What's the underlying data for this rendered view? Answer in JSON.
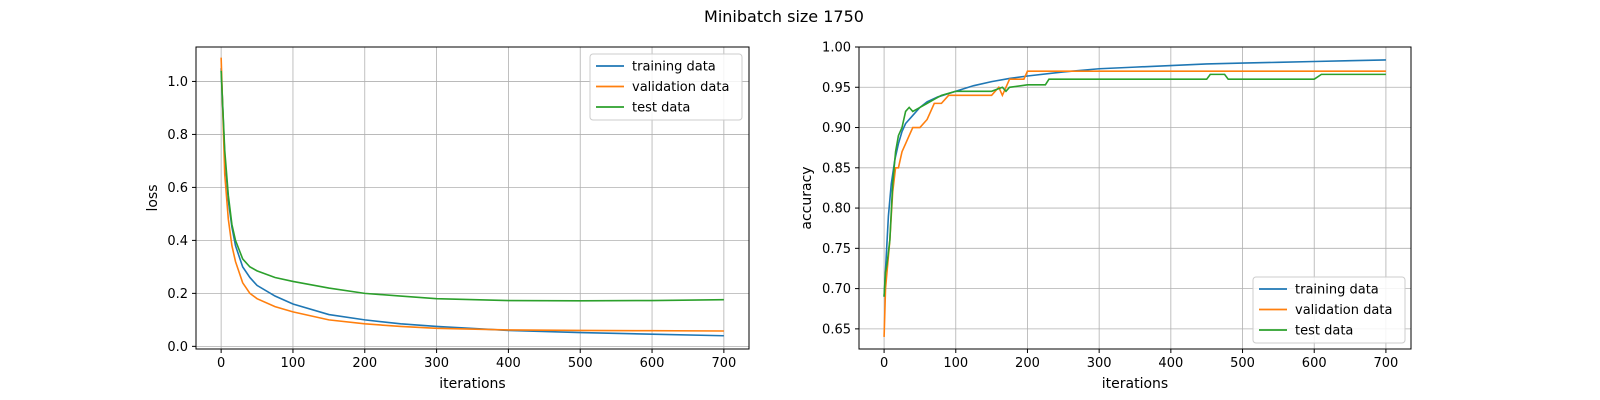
{
  "figure": {
    "title": "Minibatch size 1750"
  },
  "chart_data": [
    {
      "type": "line",
      "xlabel": "iterations",
      "ylabel": "loss",
      "xlim": [
        -35,
        735
      ],
      "ylim": [
        -0.01,
        1.13
      ],
      "xticks": [
        0,
        100,
        200,
        300,
        400,
        500,
        600,
        700
      ],
      "yticks": [
        0.0,
        0.2,
        0.4,
        0.6,
        0.8,
        1.0
      ],
      "ytick_labels": [
        "0.0",
        "0.2",
        "0.4",
        "0.6",
        "0.8",
        "1.0"
      ],
      "grid": true,
      "legend_position": "top-right",
      "series": [
        {
          "name": "training data",
          "color": "#1f77b4",
          "x": [
            0,
            5,
            10,
            15,
            20,
            30,
            40,
            50,
            75,
            100,
            150,
            200,
            250,
            300,
            400,
            500,
            600,
            700
          ],
          "y": [
            1.05,
            0.72,
            0.55,
            0.45,
            0.38,
            0.3,
            0.26,
            0.23,
            0.19,
            0.16,
            0.12,
            0.1,
            0.085,
            0.075,
            0.06,
            0.052,
            0.046,
            0.04
          ]
        },
        {
          "name": "validation data",
          "color": "#ff7f0e",
          "x": [
            0,
            5,
            10,
            15,
            20,
            30,
            40,
            50,
            75,
            100,
            150,
            200,
            250,
            300,
            400,
            500,
            600,
            700
          ],
          "y": [
            1.09,
            0.65,
            0.48,
            0.38,
            0.32,
            0.24,
            0.2,
            0.18,
            0.15,
            0.13,
            0.1,
            0.085,
            0.075,
            0.068,
            0.062,
            0.06,
            0.059,
            0.058
          ]
        },
        {
          "name": "test data",
          "color": "#2ca02c",
          "x": [
            0,
            5,
            10,
            15,
            20,
            30,
            40,
            50,
            75,
            100,
            150,
            200,
            250,
            300,
            400,
            500,
            600,
            700
          ],
          "y": [
            1.04,
            0.74,
            0.57,
            0.46,
            0.4,
            0.33,
            0.3,
            0.285,
            0.26,
            0.245,
            0.22,
            0.2,
            0.19,
            0.18,
            0.173,
            0.172,
            0.173,
            0.176
          ]
        }
      ]
    },
    {
      "type": "line",
      "xlabel": "iterations",
      "ylabel": "accuracy",
      "xlim": [
        -35,
        735
      ],
      "ylim": [
        0.625,
        1.0
      ],
      "xticks": [
        0,
        100,
        200,
        300,
        400,
        500,
        600,
        700
      ],
      "yticks": [
        0.65,
        0.7,
        0.75,
        0.8,
        0.85,
        0.9,
        0.95,
        1.0
      ],
      "ytick_labels": [
        "0.65",
        "0.70",
        "0.75",
        "0.80",
        "0.85",
        "0.90",
        "0.95",
        "1.00"
      ],
      "grid": true,
      "legend_position": "bottom-right",
      "series": [
        {
          "name": "training data",
          "color": "#1f77b4",
          "x": [
            0,
            3,
            6,
            10,
            15,
            20,
            25,
            30,
            40,
            50,
            60,
            75,
            100,
            125,
            150,
            175,
            200,
            250,
            300,
            350,
            400,
            450,
            500,
            550,
            600,
            650,
            700
          ],
          "y": [
            0.69,
            0.74,
            0.79,
            0.83,
            0.86,
            0.88,
            0.895,
            0.905,
            0.915,
            0.925,
            0.932,
            0.938,
            0.945,
            0.952,
            0.957,
            0.961,
            0.964,
            0.969,
            0.973,
            0.975,
            0.977,
            0.979,
            0.98,
            0.981,
            0.982,
            0.983,
            0.984
          ]
        },
        {
          "name": "validation data",
          "color": "#ff7f0e",
          "x": [
            0,
            2,
            4,
            8,
            12,
            16,
            20,
            25,
            30,
            35,
            40,
            45,
            50,
            60,
            65,
            70,
            75,
            80,
            90,
            95,
            100,
            150,
            160,
            165,
            170,
            175,
            180,
            195,
            200,
            700
          ],
          "y": [
            0.64,
            0.7,
            0.72,
            0.76,
            0.82,
            0.85,
            0.85,
            0.87,
            0.88,
            0.89,
            0.9,
            0.9,
            0.9,
            0.91,
            0.92,
            0.93,
            0.93,
            0.93,
            0.94,
            0.94,
            0.94,
            0.94,
            0.95,
            0.94,
            0.95,
            0.96,
            0.96,
            0.96,
            0.97,
            0.97
          ]
        },
        {
          "name": "test data",
          "color": "#2ca02c",
          "x": [
            0,
            2,
            4,
            8,
            12,
            16,
            20,
            25,
            30,
            35,
            40,
            50,
            60,
            70,
            80,
            100,
            125,
            150,
            165,
            170,
            175,
            200,
            225,
            230,
            450,
            455,
            475,
            480,
            600,
            610,
            700
          ],
          "y": [
            0.69,
            0.72,
            0.73,
            0.76,
            0.83,
            0.87,
            0.89,
            0.9,
            0.92,
            0.925,
            0.92,
            0.925,
            0.93,
            0.935,
            0.94,
            0.945,
            0.945,
            0.945,
            0.95,
            0.945,
            0.95,
            0.953,
            0.953,
            0.96,
            0.96,
            0.966,
            0.966,
            0.96,
            0.96,
            0.966,
            0.966
          ]
        }
      ]
    }
  ]
}
